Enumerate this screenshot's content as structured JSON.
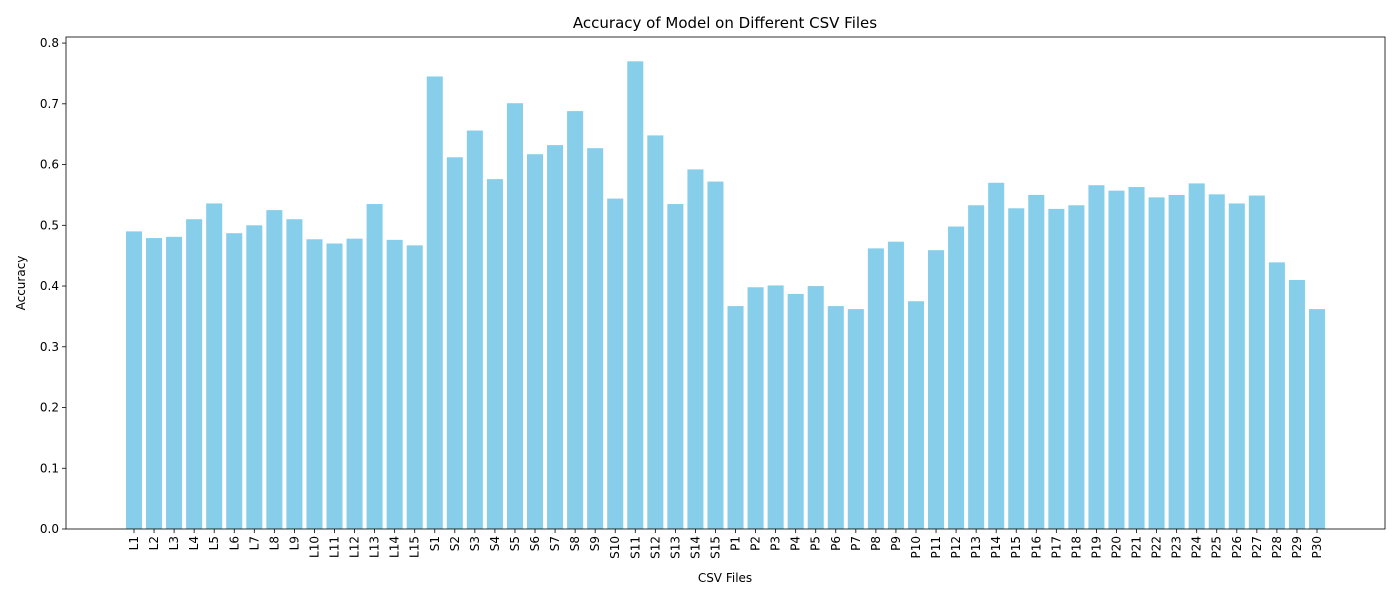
{
  "chart_data": {
    "type": "bar",
    "title": "Accuracy of Model on Different CSV Files",
    "xlabel": "CSV Files",
    "ylabel": "Accuracy",
    "ylim": [
      0,
      0.81
    ],
    "yticks": [
      "0.0",
      "0.1",
      "0.2",
      "0.3",
      "0.4",
      "0.5",
      "0.6",
      "0.7",
      "0.8"
    ],
    "grid": false,
    "bar_color": "#87ceeb",
    "categories": [
      "L1",
      "L2",
      "L3",
      "L4",
      "L5",
      "L6",
      "L7",
      "L8",
      "L9",
      "L10",
      "L11",
      "L12",
      "L13",
      "L14",
      "L15",
      "S1",
      "S2",
      "S3",
      "S4",
      "S5",
      "S6",
      "S7",
      "S8",
      "S9",
      "S10",
      "S11",
      "S12",
      "S13",
      "S14",
      "S15",
      "P1",
      "P2",
      "P3",
      "P4",
      "P5",
      "P6",
      "P7",
      "P8",
      "P9",
      "P10",
      "P11",
      "P12",
      "P13",
      "P14",
      "P15",
      "P16",
      "P17",
      "P18",
      "P19",
      "P20",
      "P21",
      "P22",
      "P23",
      "P24",
      "P25",
      "P26",
      "P27",
      "P28",
      "P29",
      "P30"
    ],
    "values": [
      0.49,
      0.479,
      0.481,
      0.51,
      0.536,
      0.487,
      0.5,
      0.525,
      0.51,
      0.477,
      0.47,
      0.478,
      0.535,
      0.476,
      0.467,
      0.745,
      0.612,
      0.656,
      0.576,
      0.701,
      0.617,
      0.632,
      0.688,
      0.627,
      0.544,
      0.77,
      0.648,
      0.535,
      0.592,
      0.572,
      0.367,
      0.398,
      0.401,
      0.387,
      0.4,
      0.367,
      0.362,
      0.462,
      0.473,
      0.375,
      0.459,
      0.498,
      0.533,
      0.57,
      0.528,
      0.55,
      0.527,
      0.533,
      0.566,
      0.557,
      0.563,
      0.546,
      0.55,
      0.569,
      0.551,
      0.536,
      0.549,
      0.439,
      0.41,
      0.362
    ]
  }
}
